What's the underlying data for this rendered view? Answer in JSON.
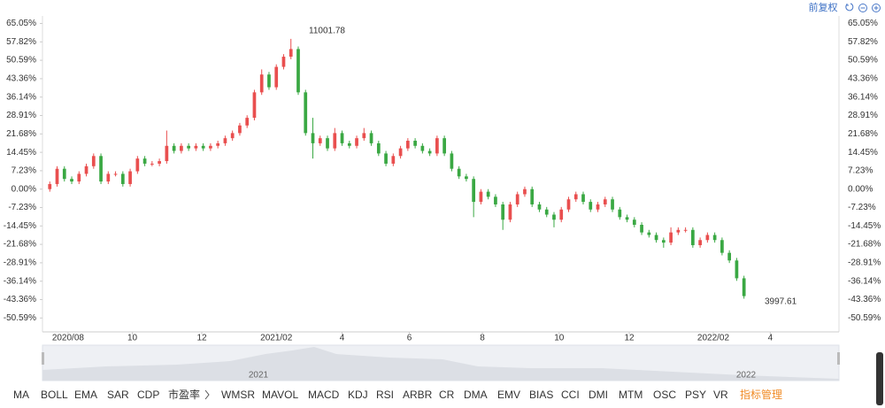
{
  "toolbar": {
    "adjust": "前复权"
  },
  "chart_data": {
    "type": "candlestick",
    "x": [
      0,
      1,
      2,
      3,
      4,
      5,
      6,
      7,
      8,
      9,
      10,
      11,
      12,
      13,
      14,
      15,
      16,
      17,
      18,
      19,
      20,
      21,
      22,
      23,
      24,
      25,
      26,
      27,
      28,
      29,
      30,
      31,
      32,
      33,
      34,
      35,
      36,
      37,
      38,
      39,
      40,
      41,
      42,
      43,
      44,
      45,
      46,
      47,
      48,
      49,
      50,
      51,
      52,
      53,
      54,
      55,
      56,
      57,
      58,
      59,
      60,
      61,
      62,
      63,
      64,
      65,
      66,
      67,
      68,
      69,
      70,
      71,
      72,
      73,
      74,
      75,
      76,
      77,
      78,
      79,
      80,
      81,
      82,
      83,
      84,
      85,
      86,
      87,
      88,
      89,
      90,
      91,
      92,
      93,
      94,
      95
    ],
    "open": [
      0,
      2,
      8,
      4,
      3,
      6,
      9,
      13,
      3,
      6,
      6,
      2,
      7,
      12,
      10,
      10,
      11,
      17,
      15,
      17,
      16,
      17,
      16,
      17,
      18,
      20,
      22,
      25,
      28,
      38,
      45,
      40,
      48,
      52,
      55,
      38,
      22,
      18,
      20,
      16,
      22,
      18,
      17,
      20,
      22,
      18,
      14,
      10,
      13,
      16,
      19,
      17,
      15,
      14,
      20,
      14,
      8,
      5,
      4,
      -5,
      -1,
      -3,
      -6,
      -12,
      -6,
      -2,
      0,
      -6,
      -8,
      -10,
      -12,
      -8,
      -4,
      -2,
      -5,
      -8,
      -6,
      -4,
      -8,
      -11,
      -12,
      -14,
      -17,
      -18,
      -20,
      -21,
      -17,
      -16,
      -16,
      -22,
      -20,
      -18,
      -20,
      -25,
      -28,
      -35
    ],
    "high": [
      3,
      9,
      9,
      5,
      7,
      10,
      14,
      14,
      7,
      7,
      7,
      8,
      13,
      13,
      11,
      12,
      23,
      18,
      18,
      18,
      18,
      18,
      18,
      19,
      21,
      23,
      26,
      29,
      39,
      47,
      46,
      49,
      53,
      59,
      56,
      39,
      28,
      21,
      21,
      24,
      23,
      19,
      21,
      24,
      23,
      19,
      15,
      14,
      17,
      20,
      20,
      18,
      16,
      21,
      21,
      15,
      9,
      6,
      5,
      0,
      0,
      -2,
      -5,
      -5,
      -1,
      1,
      1,
      -5,
      -7,
      -9,
      -7,
      -3,
      -1,
      -1,
      -4,
      -5,
      -3,
      -3,
      -7,
      -10,
      -11,
      -13,
      -16,
      -17,
      -19,
      -15,
      -15,
      -15,
      -15,
      -19,
      -17,
      -17,
      -19,
      -24,
      -27,
      -34
    ],
    "low": [
      -1,
      1,
      3,
      2,
      2,
      5,
      8,
      2,
      2,
      5,
      1,
      1,
      6,
      9,
      9,
      9,
      10,
      14,
      14,
      15,
      15,
      15,
      15,
      16,
      17,
      19,
      21,
      24,
      27,
      37,
      39,
      39,
      47,
      51,
      37,
      21,
      12,
      17,
      15,
      15,
      17,
      16,
      16,
      19,
      17,
      13,
      9,
      9,
      12,
      15,
      16,
      14,
      13,
      13,
      13,
      7,
      4,
      3,
      -11,
      -6,
      -4,
      -7,
      -16,
      -13,
      -7,
      -3,
      -7,
      -9,
      -11,
      -15,
      -13,
      -9,
      -5,
      -6,
      -9,
      -9,
      -7,
      -9,
      -12,
      -13,
      -15,
      -18,
      -19,
      -21,
      -23,
      -22,
      -18,
      -17,
      -23,
      -23,
      -21,
      -21,
      -26,
      -29,
      -36,
      -43
    ],
    "close": [
      2,
      8,
      4,
      3,
      6,
      9,
      13,
      3,
      6,
      6,
      2,
      7,
      12,
      10,
      10,
      11,
      17,
      15,
      17,
      16,
      17,
      16,
      17,
      18,
      20,
      22,
      25,
      28,
      38,
      45,
      40,
      48,
      52,
      55,
      38,
      22,
      18,
      20,
      16,
      22,
      18,
      17,
      20,
      22,
      18,
      14,
      10,
      13,
      16,
      19,
      17,
      15,
      14,
      20,
      14,
      8,
      5,
      4,
      -5,
      -1,
      -3,
      -6,
      -12,
      -6,
      -2,
      0,
      -6,
      -8,
      -10,
      -12,
      -8,
      -4,
      -2,
      -5,
      -8,
      -6,
      -4,
      -8,
      -11,
      -12,
      -14,
      -17,
      -18,
      -20,
      -21,
      -17,
      -16,
      -16,
      -22,
      -20,
      -18,
      -20,
      -25,
      -28,
      -35,
      -42
    ],
    "up_color": "#e94f4f",
    "down_color": "#3aa843",
    "xlim": [
      -1,
      108
    ],
    "xticks": [
      {
        "value": 2.5,
        "label": "2020/08"
      },
      {
        "value": 11.3,
        "label": "10"
      },
      {
        "value": 20.8,
        "label": "12"
      },
      {
        "value": 31,
        "label": "2021/02"
      },
      {
        "value": 40,
        "label": "4"
      },
      {
        "value": 49.2,
        "label": "6"
      },
      {
        "value": 59.2,
        "label": "8"
      },
      {
        "value": 69.7,
        "label": "10"
      },
      {
        "value": 79.3,
        "label": "12"
      },
      {
        "value": 90.8,
        "label": "2022/02"
      },
      {
        "value": 98.6,
        "label": "4"
      }
    ],
    "ylim": [
      -55,
      68
    ],
    "yticks": [
      {
        "value": 65.05,
        "label": "65.05%"
      },
      {
        "value": 57.82,
        "label": "57.82%"
      },
      {
        "value": 50.59,
        "label": "50.59%"
      },
      {
        "value": 43.36,
        "label": "43.36%"
      },
      {
        "value": 36.14,
        "label": "36.14%"
      },
      {
        "value": 28.91,
        "label": "28.91%"
      },
      {
        "value": 21.68,
        "label": "21.68%"
      },
      {
        "value": 14.45,
        "label": "14.45%"
      },
      {
        "value": 7.23,
        "label": "7.23%"
      },
      {
        "value": 0,
        "label": "0.00%"
      },
      {
        "value": -7.23,
        "label": "-7.23%"
      },
      {
        "value": -14.45,
        "label": "-14.45%"
      },
      {
        "value": -21.68,
        "label": "-21.68%"
      },
      {
        "value": -28.91,
        "label": "-28.91%"
      },
      {
        "value": -36.14,
        "label": "-36.14%"
      },
      {
        "value": -43.36,
        "label": "-43.36%"
      },
      {
        "value": -50.59,
        "label": "-50.59%"
      }
    ],
    "grid": false,
    "annotations": [
      "11001.78",
      "3997.61"
    ]
  },
  "navigator": {
    "labels": [
      "2021",
      "2022"
    ]
  },
  "indicators": [
    "MA",
    "BOLL",
    "EMA",
    "SAR",
    "CDP",
    "市盈率",
    "WMSR",
    "MAVOL",
    "MACD",
    "KDJ",
    "RSI",
    "ARBR",
    "CR",
    "DMA",
    "EMV",
    "BIAS",
    "CCI",
    "DMI",
    "MTM",
    "OSC",
    "PSY",
    "VR"
  ],
  "indicator_manage": "指标管理"
}
